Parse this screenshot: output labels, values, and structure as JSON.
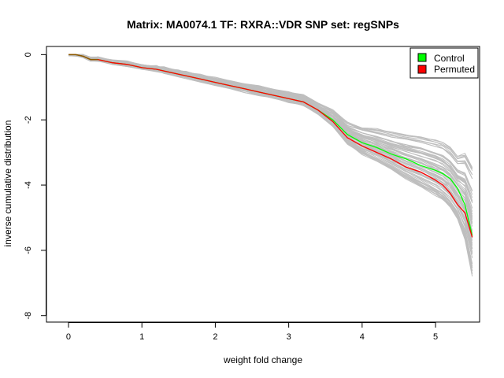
{
  "chart_data": {
    "type": "line",
    "title": "Matrix: MA0074.1 TF: RXRA::VDR SNP set: regSNPs",
    "xlabel": "weight fold change",
    "ylabel": "inverse cumulative distribution",
    "xlim": [
      -0.3,
      5.6
    ],
    "ylim": [
      -8.2,
      0.25
    ],
    "x_ticks": [
      "0",
      "1",
      "2",
      "3",
      "4",
      "5"
    ],
    "y_ticks": [
      "0",
      "-2",
      "-4",
      "-6",
      "-8"
    ],
    "legend_position": "top-right",
    "legend": [
      {
        "label": "Control",
        "color": "#00ff00"
      },
      {
        "label": "Permuted",
        "color": "#ff0000"
      }
    ],
    "colors": {
      "control": "#00ff00",
      "permuted": "#ff0000",
      "background_lines": "#bebebe",
      "overlap": "#8b5a00"
    },
    "background_lines_count": 60,
    "series": [
      {
        "name": "Control",
        "x": [
          0,
          0.1,
          0.2,
          0.3,
          0.4,
          0.6,
          0.8,
          1.0,
          1.2,
          1.3,
          1.5,
          1.6,
          1.8,
          2.0,
          2.2,
          2.4,
          2.6,
          2.8,
          3.0,
          3.2,
          3.4,
          3.6,
          3.8,
          4.0,
          4.2,
          4.4,
          4.6,
          4.8,
          5.0,
          5.1,
          5.2,
          5.3,
          5.4,
          5.5
        ],
        "values": [
          0,
          0,
          -0.05,
          -0.15,
          -0.15,
          -0.25,
          -0.3,
          -0.4,
          -0.45,
          -0.5,
          -0.6,
          -0.65,
          -0.75,
          -0.85,
          -0.95,
          -1.05,
          -1.15,
          -1.25,
          -1.35,
          -1.45,
          -1.7,
          -2.0,
          -2.45,
          -2.7,
          -2.85,
          -3.05,
          -3.2,
          -3.4,
          -3.55,
          -3.65,
          -3.8,
          -4.1,
          -4.6,
          -5.55
        ]
      },
      {
        "name": "Permuted",
        "x": [
          0,
          0.1,
          0.2,
          0.3,
          0.4,
          0.6,
          0.8,
          1.0,
          1.2,
          1.3,
          1.5,
          1.6,
          1.8,
          2.0,
          2.2,
          2.4,
          2.6,
          2.8,
          3.0,
          3.2,
          3.4,
          3.6,
          3.8,
          4.0,
          4.2,
          4.4,
          4.6,
          4.8,
          5.0,
          5.1,
          5.2,
          5.3,
          5.4,
          5.5
        ],
        "values": [
          0,
          0,
          -0.05,
          -0.15,
          -0.15,
          -0.25,
          -0.3,
          -0.4,
          -0.45,
          -0.5,
          -0.6,
          -0.65,
          -0.75,
          -0.85,
          -0.95,
          -1.05,
          -1.15,
          -1.25,
          -1.35,
          -1.45,
          -1.7,
          -2.05,
          -2.55,
          -2.8,
          -3.0,
          -3.2,
          -3.45,
          -3.6,
          -3.85,
          -4.0,
          -4.25,
          -4.6,
          -4.85,
          -5.6
        ]
      }
    ]
  }
}
